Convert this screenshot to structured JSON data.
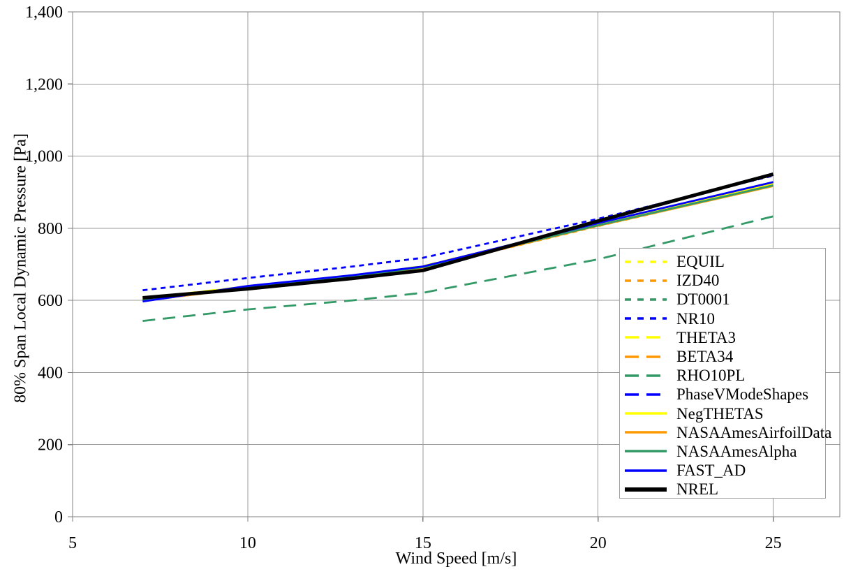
{
  "chart_data": {
    "type": "line",
    "title": "",
    "xlabel": "Wind Speed [m/s]",
    "ylabel": "80% Span Local Dynamic Pressure [Pa]",
    "xlim": [
      5,
      26.9
    ],
    "ylim": [
      0,
      1400
    ],
    "grid": true,
    "legend_position": "inside-right",
    "x_ticks": [
      5,
      10,
      15,
      20,
      25
    ],
    "x_tick_labels": [
      "5",
      "10",
      "15",
      "20",
      "25"
    ],
    "y_ticks": [
      0,
      200,
      400,
      600,
      800,
      1000,
      1200,
      1400
    ],
    "y_tick_labels": [
      "0",
      "200",
      "400",
      "600",
      "800",
      "1,000",
      "1,200",
      "1,400"
    ],
    "x": [
      7,
      10,
      13,
      15,
      20,
      25
    ],
    "series": [
      {
        "name": "EQUIL",
        "color": "#FFFF00",
        "style": "dotted",
        "values": [
          605,
          638,
          668,
          694,
          812,
          924
        ]
      },
      {
        "name": "IZD40",
        "color": "#FF9900",
        "style": "dotted",
        "values": [
          600,
          633,
          663,
          689,
          806,
          918
        ]
      },
      {
        "name": "DT0001",
        "color": "#339966",
        "style": "dotted",
        "values": [
          604,
          637,
          667,
          693,
          810,
          922
        ]
      },
      {
        "name": "NR10",
        "color": "#0000FF",
        "style": "dotted",
        "values": [
          628,
          662,
          694,
          718,
          826,
          946
        ]
      },
      {
        "name": "THETA3",
        "color": "#FFFF00",
        "style": "dashed",
        "values": [
          606,
          639,
          669,
          695,
          813,
          926
        ]
      },
      {
        "name": "BETA34",
        "color": "#FF9900",
        "style": "dashed",
        "values": [
          602,
          635,
          665,
          691,
          808,
          920
        ]
      },
      {
        "name": "RHO10PL",
        "color": "#339966",
        "style": "dashed",
        "values": [
          543,
          575,
          600,
          621,
          714,
          833
        ]
      },
      {
        "name": "PhaseVModeShapes",
        "color": "#0000FF",
        "style": "dashed",
        "values": [
          598,
          636,
          666,
          692,
          809,
          921
        ]
      },
      {
        "name": "NegTHETAS",
        "color": "#FFFF00",
        "style": "solid",
        "values": [
          605,
          638,
          668,
          694,
          811,
          923
        ]
      },
      {
        "name": "NASAAmesAirfoilData",
        "color": "#FF9900",
        "style": "solid",
        "values": [
          599,
          634,
          664,
          690,
          807,
          917
        ]
      },
      {
        "name": "NASAAmesAlpha",
        "color": "#339966",
        "style": "solid",
        "values": [
          601,
          636,
          666,
          692,
          808,
          919
        ]
      },
      {
        "name": "FAST_AD",
        "color": "#0000FF",
        "style": "solid",
        "values": [
          597,
          640,
          670,
          694,
          814,
          928
        ]
      },
      {
        "name": "NREL",
        "color": "#000000",
        "style": "solid-thick",
        "values": [
          607,
          632,
          661,
          683,
          820,
          950
        ]
      }
    ],
    "plot_colors": {
      "gridline": "#999999",
      "border": "#808080",
      "tick": "#808080",
      "text": "#000000",
      "background": "#ffffff"
    }
  }
}
